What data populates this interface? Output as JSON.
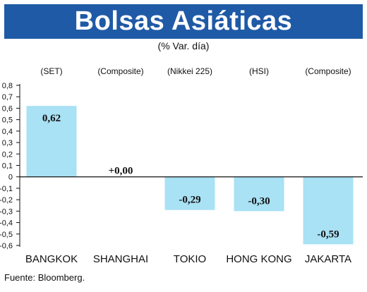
{
  "header": {
    "title": "Bolsas Asiáticas",
    "subtitle": "(% Var. día)"
  },
  "colors": {
    "title_bg": "#1f5aa6",
    "bar": "#a9e1f5",
    "text": "#111111"
  },
  "source": "Fuente: Bloomberg.",
  "chart_data": {
    "type": "bar",
    "title": "Bolsas Asiáticas",
    "subtitle": "(% Var. día)",
    "categories": [
      "BANGKOK",
      "SHANGHAI",
      "TOKIO",
      "HONG KONG",
      "JAKARTA"
    ],
    "index_labels": [
      "(SET)",
      "(Composite)",
      "(Nikkei 225)",
      "(HSI)",
      "(Composite)"
    ],
    "values": [
      0.62,
      0.0,
      -0.29,
      -0.3,
      -0.59
    ],
    "value_labels": [
      "0,62",
      "+0,00",
      "-0,29",
      "-0,30",
      "-0,59"
    ],
    "y_ticks": [
      "0,8",
      "0,7",
      "0,6",
      "0,5",
      "0,4",
      "0,3",
      "0,2",
      "0,1",
      "0",
      "-0,1",
      "-0,2",
      "-0,3",
      "-0,4",
      "-0,5",
      "-0,6"
    ],
    "ylim": [
      -0.6,
      0.8
    ],
    "grid": false,
    "xlabel": "",
    "ylabel": ""
  }
}
